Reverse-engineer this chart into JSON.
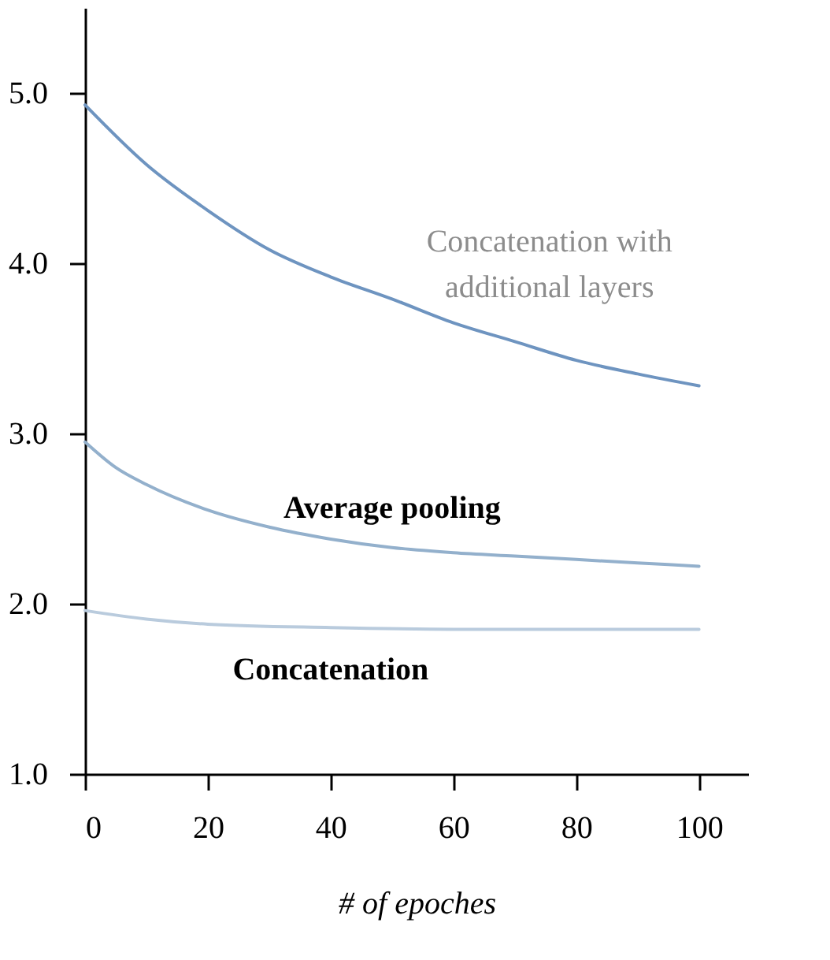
{
  "chart_data": {
    "type": "line",
    "xlabel": "# of epoches",
    "xlim": [
      0,
      108
    ],
    "xticks": [
      0,
      20,
      40,
      60,
      80,
      100
    ],
    "ylim": [
      1,
      5.5
    ],
    "yticks": [
      {
        "value": 1,
        "label": "1.0"
      },
      {
        "value": 2,
        "label": "2.0"
      },
      {
        "value": 3,
        "label": "3.0"
      },
      {
        "value": 4,
        "label": "4.0"
      },
      {
        "value": 5,
        "label": "5.0"
      }
    ],
    "grid": false,
    "legend": false,
    "marker": "none",
    "line_style": "solid",
    "series": [
      {
        "name": "Concatenation with additional layers",
        "color": "#6e94c0",
        "x": [
          0,
          10,
          20,
          30,
          40,
          50,
          60,
          70,
          80,
          90,
          100
        ],
        "values": [
          4.93,
          4.58,
          4.31,
          4.08,
          3.92,
          3.79,
          3.65,
          3.54,
          3.43,
          3.35,
          3.28
        ]
      },
      {
        "name": "Average pooling",
        "color": "#93b0cc",
        "x": [
          0,
          5,
          10,
          20,
          30,
          40,
          50,
          60,
          70,
          80,
          90,
          100
        ],
        "values": [
          2.95,
          2.8,
          2.7,
          2.55,
          2.45,
          2.38,
          2.33,
          2.3,
          2.28,
          2.26,
          2.24,
          2.22
        ]
      },
      {
        "name": "Concatenation",
        "color": "#b9cbdd",
        "x": [
          0,
          10,
          20,
          40,
          60,
          100
        ],
        "values": [
          1.96,
          1.91,
          1.88,
          1.86,
          1.85,
          1.85
        ]
      }
    ]
  }
}
